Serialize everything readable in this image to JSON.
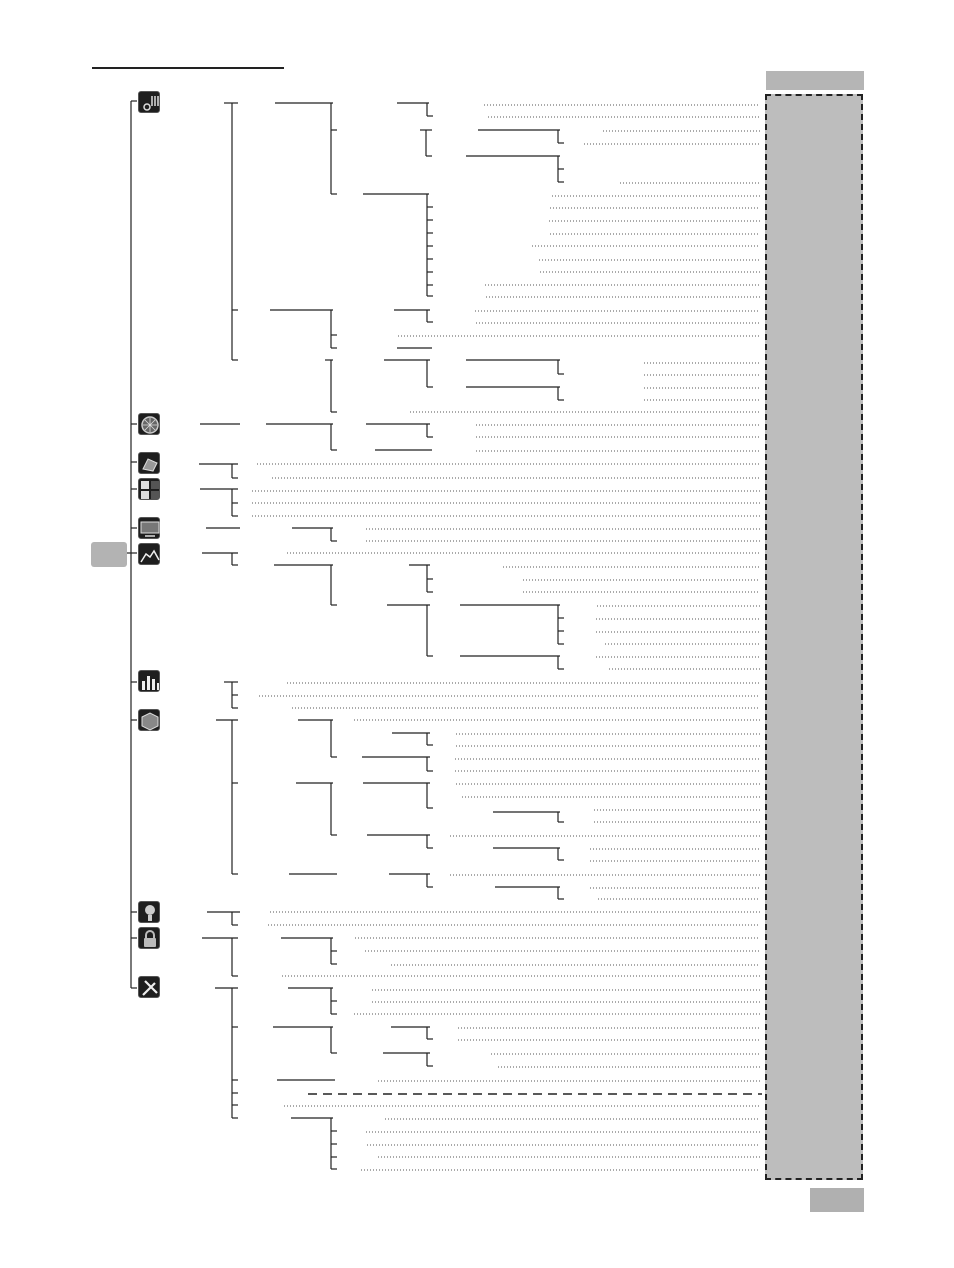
{
  "page": {
    "header_rule": true,
    "sidebar_tab_text": "",
    "page_tab_text": ""
  },
  "menu": {
    "icons": [
      {
        "name": "audio-icon"
      },
      {
        "name": "disc-icon"
      },
      {
        "name": "photo-icon"
      },
      {
        "name": "grid-icon"
      },
      {
        "name": "display-icon"
      },
      {
        "name": "chart-icon"
      },
      {
        "name": "equalizer-icon"
      },
      {
        "name": "box-icon"
      },
      {
        "name": "speaker-icon"
      },
      {
        "name": "lock-icon"
      },
      {
        "name": "tools-icon"
      }
    ]
  },
  "colors": {
    "line": "#222222",
    "sidebar": "#bdbdbd",
    "tab": "#b3b3b3"
  }
}
